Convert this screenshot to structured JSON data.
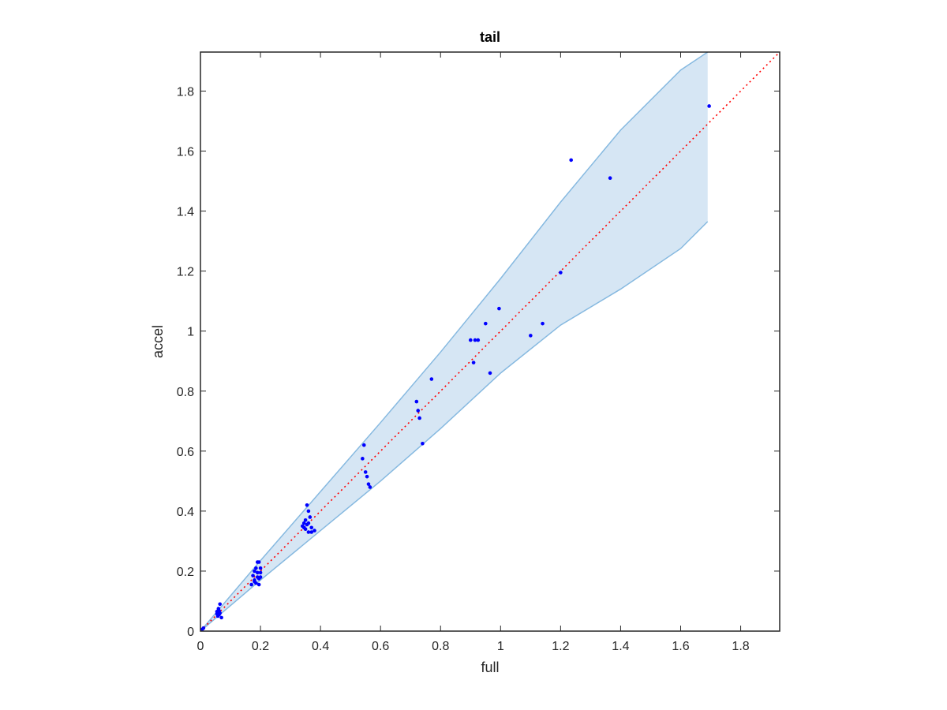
{
  "chart_data": {
    "type": "scatter",
    "title": "tail",
    "xlabel": "full",
    "ylabel": "accel",
    "xlim": [
      0,
      1.93
    ],
    "ylim": [
      0,
      1.93
    ],
    "xticks": [
      0,
      0.2,
      0.4,
      0.6,
      0.8,
      1,
      1.2,
      1.4,
      1.6,
      1.8
    ],
    "xtick_labels": [
      "0",
      "0.2",
      "0.4",
      "0.6",
      "0.8",
      "1",
      "1.2",
      "1.4",
      "1.6",
      "1.8"
    ],
    "yticks": [
      0,
      0.2,
      0.4,
      0.6,
      0.8,
      1,
      1.2,
      1.4,
      1.6,
      1.8
    ],
    "ytick_labels": [
      "0",
      "0.2",
      "0.4",
      "0.6",
      "0.8",
      "1",
      "1.2",
      "1.4",
      "1.6",
      "1.8"
    ],
    "grid": false,
    "colors": {
      "points": "#0000ff",
      "reference_line": "#ff0000",
      "band_fill": "#d6e6f4",
      "band_edge": "#86b9e0",
      "axes": "#262626"
    },
    "reference_line": {
      "style": "dotted",
      "x": [
        0,
        1.93
      ],
      "y": [
        0,
        1.93
      ]
    },
    "band": {
      "x": [
        0,
        0.2,
        0.4,
        0.6,
        0.8,
        1.0,
        1.2,
        1.4,
        1.6,
        1.69
      ],
      "upper": [
        0,
        0.235,
        0.465,
        0.695,
        0.93,
        1.175,
        1.43,
        1.67,
        1.87,
        1.93
      ],
      "lower": [
        0,
        0.17,
        0.335,
        0.5,
        0.675,
        0.86,
        1.02,
        1.14,
        1.275,
        1.365
      ]
    },
    "series": [
      {
        "points": [
          [
            0.005,
            0.005
          ],
          [
            0.01,
            0.01
          ],
          [
            0.055,
            0.065
          ],
          [
            0.06,
            0.07
          ],
          [
            0.058,
            0.05
          ],
          [
            0.062,
            0.055
          ],
          [
            0.065,
            0.09
          ],
          [
            0.06,
            0.075
          ],
          [
            0.065,
            0.06
          ],
          [
            0.07,
            0.045
          ],
          [
            0.055,
            0.058
          ],
          [
            0.062,
            0.068
          ],
          [
            0.17,
            0.155
          ],
          [
            0.175,
            0.185
          ],
          [
            0.18,
            0.17
          ],
          [
            0.18,
            0.2
          ],
          [
            0.185,
            0.16
          ],
          [
            0.185,
            0.21
          ],
          [
            0.19,
            0.23
          ],
          [
            0.19,
            0.18
          ],
          [
            0.195,
            0.175
          ],
          [
            0.195,
            0.23
          ],
          [
            0.2,
            0.21
          ],
          [
            0.2,
            0.18
          ],
          [
            0.195,
            0.155
          ],
          [
            0.18,
            0.165
          ],
          [
            0.19,
            0.195
          ],
          [
            0.2,
            0.195
          ],
          [
            0.34,
            0.35
          ],
          [
            0.345,
            0.36
          ],
          [
            0.35,
            0.34
          ],
          [
            0.35,
            0.37
          ],
          [
            0.355,
            0.42
          ],
          [
            0.355,
            0.355
          ],
          [
            0.36,
            0.4
          ],
          [
            0.36,
            0.33
          ],
          [
            0.365,
            0.38
          ],
          [
            0.37,
            0.345
          ],
          [
            0.37,
            0.33
          ],
          [
            0.38,
            0.335
          ],
          [
            0.345,
            0.345
          ],
          [
            0.36,
            0.36
          ],
          [
            0.54,
            0.575
          ],
          [
            0.545,
            0.62
          ],
          [
            0.55,
            0.53
          ],
          [
            0.555,
            0.515
          ],
          [
            0.56,
            0.49
          ],
          [
            0.565,
            0.48
          ],
          [
            0.72,
            0.765
          ],
          [
            0.725,
            0.735
          ],
          [
            0.73,
            0.71
          ],
          [
            0.74,
            0.625
          ],
          [
            0.77,
            0.84
          ],
          [
            0.9,
            0.97
          ],
          [
            0.91,
            0.895
          ],
          [
            0.915,
            0.97
          ],
          [
            0.925,
            0.97
          ],
          [
            0.95,
            1.025
          ],
          [
            0.965,
            0.86
          ],
          [
            0.995,
            1.075
          ],
          [
            1.1,
            0.985
          ],
          [
            1.14,
            1.025
          ],
          [
            1.2,
            1.195
          ],
          [
            1.235,
            1.57
          ],
          [
            1.365,
            1.51
          ],
          [
            1.695,
            1.75
          ]
        ]
      }
    ]
  }
}
